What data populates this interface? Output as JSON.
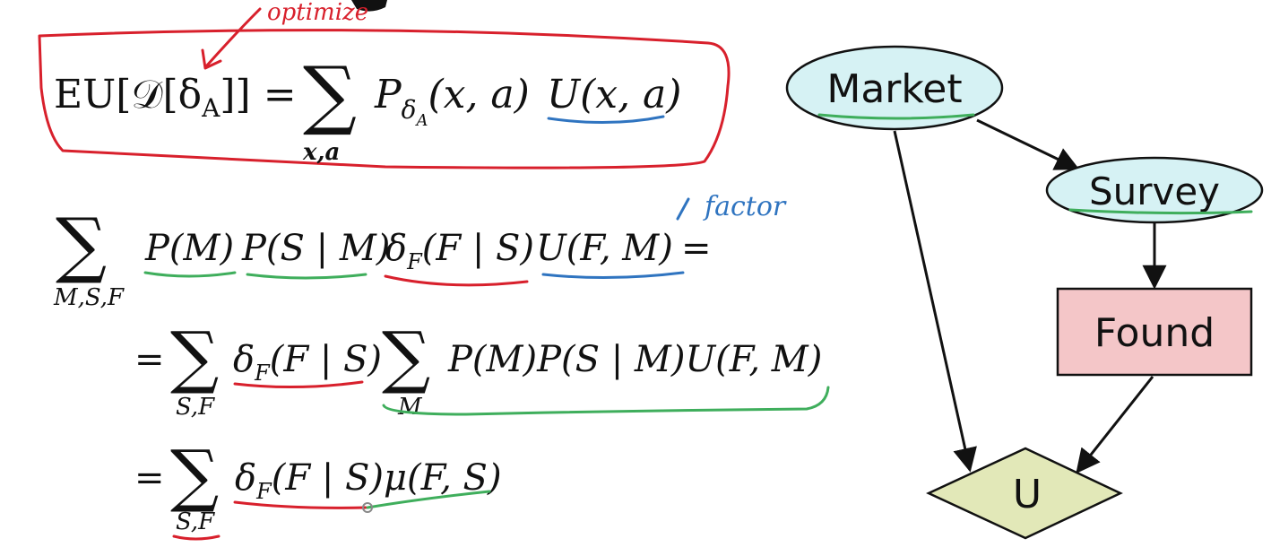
{
  "annotations": {
    "optimize": "optimize",
    "factor": "factor"
  },
  "equation_eu": {
    "lhs_eu": "EU",
    "lhs_bracket": "[𝒟[δ",
    "lhs_sub": "A",
    "lhs_close": "]] =",
    "sum_symbol": "∑",
    "sum_under": "x,a",
    "p_symbol": "P",
    "p_sub_delta": "δ",
    "p_sub_sub": "A",
    "p_args": "(x, a)",
    "u_term": "U(x, a)"
  },
  "derivation": {
    "line1": {
      "sum_symbol": "∑",
      "sum_under": "M,S,F",
      "t_pm": "P(M)",
      "t_psm": "P(S | M)",
      "t_delta": "δ",
      "t_delta_sub": "F",
      "t_delta_args": "(F | S)",
      "t_u": "U(F, M)",
      "eq": "="
    },
    "line2": {
      "eq": "=",
      "sum1_symbol": "∑",
      "sum1_under": "S,F",
      "t_delta": "δ",
      "t_delta_sub": "F",
      "t_delta_args": "(F | S)",
      "sum2_symbol": "∑",
      "sum2_under": "M",
      "t_rest": "P(M)P(S | M)U(F, M)"
    },
    "line3": {
      "eq": "=",
      "sum_symbol": "∑",
      "sum_under": "S,F",
      "t_delta": "δ",
      "t_delta_sub": "F",
      "t_delta_args": "(F | S)",
      "t_mu": "μ(F, S)"
    }
  },
  "influence_diagram": {
    "nodes": {
      "market": "Market",
      "survey": "Survey",
      "found": "Found",
      "utility": "U"
    },
    "colors": {
      "chance_fill": "#d6f2f4",
      "decision_fill": "#f4c6c8",
      "utility_fill": "#e2e8b8",
      "edge": "#111111"
    }
  },
  "ink_colors": {
    "red": "#d8202c",
    "green": "#3fae5c",
    "blue": "#2f74c0"
  }
}
